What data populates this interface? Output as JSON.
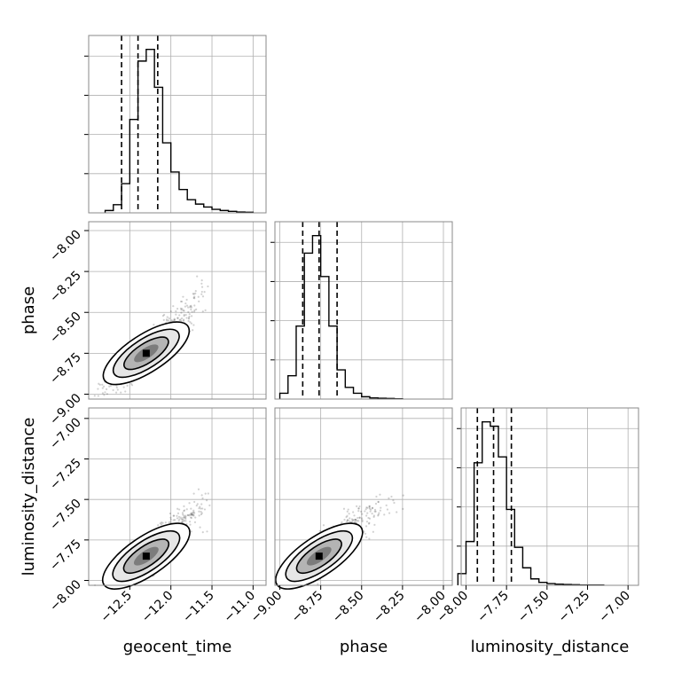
{
  "chart_data": {
    "type": "corner",
    "variables": [
      "geocent_time",
      "phase",
      "luminosity_distance"
    ],
    "ranges": {
      "geocent_time": [
        -13.0,
        -10.95
      ],
      "phase": [
        -9.03,
        -8.0
      ],
      "luminosity_distance": [
        -8.03,
        -6.99
      ]
    },
    "ticks": {
      "geocent_time": {
        "values": [
          -12.5,
          -12.0,
          -11.5,
          -11.0
        ],
        "labels": [
          "−12.5",
          "−12.0",
          "−11.5",
          "−11.0"
        ]
      },
      "phase": {
        "values": [
          -9.0,
          -8.75,
          -8.5,
          -8.25,
          -8.0
        ],
        "labels": [
          "−9.00",
          "−8.75",
          "−8.50",
          "−8.25",
          "−8.00"
        ]
      },
      "luminosity_distance": {
        "values": [
          -8.0,
          -7.75,
          -7.5,
          -7.25,
          -7.0
        ],
        "labels": [
          "−8.00",
          "−7.75",
          "−7.50",
          "−7.25",
          "−7.00"
        ]
      }
    },
    "histograms": {
      "geocent_time": {
        "edges": [
          -12.8,
          -12.7,
          -12.6,
          -12.5,
          -12.4,
          -12.3,
          -12.2,
          -12.1,
          -12.0,
          -11.9,
          -11.8,
          -11.7,
          -11.6,
          -11.5,
          -11.4,
          -11.3,
          -11.2,
          -11.1,
          -11.0
        ],
        "counts": [
          8,
          28,
          100,
          320,
          520,
          560,
          430,
          240,
          140,
          80,
          45,
          30,
          20,
          12,
          8,
          5,
          3,
          2
        ],
        "quantiles": [
          -12.6,
          -12.4,
          -12.16
        ]
      },
      "phase": {
        "edges": [
          -9.0,
          -8.95,
          -8.9,
          -8.85,
          -8.8,
          -8.75,
          -8.7,
          -8.65,
          -8.6,
          -8.55,
          -8.5,
          -8.45,
          -8.4,
          -8.35,
          -8.3,
          -8.25
        ],
        "counts": [
          20,
          80,
          250,
          500,
          560,
          420,
          250,
          100,
          40,
          20,
          8,
          4,
          3,
          2,
          1
        ],
        "quantiles": [
          -8.86,
          -8.76,
          -8.65
        ]
      },
      "luminosity_distance": {
        "edges": [
          -8.05,
          -8.0,
          -7.95,
          -7.9,
          -7.85,
          -7.8,
          -7.75,
          -7.7,
          -7.65,
          -7.6,
          -7.55,
          -7.5,
          -7.45,
          -7.4,
          -7.35,
          -7.3,
          -7.25,
          -7.2,
          -7.15
        ],
        "counts": [
          40,
          150,
          420,
          560,
          545,
          440,
          260,
          130,
          60,
          22,
          10,
          6,
          4,
          3,
          2,
          1,
          1,
          1
        ],
        "quantiles": [
          -7.93,
          -7.83,
          -7.72
        ]
      }
    },
    "pairs": [
      {
        "x": "geocent_time",
        "y": "phase",
        "center": [
          -12.3,
          -8.75
        ],
        "spread": [
          0.16,
          0.07
        ],
        "tail": [
          0.7,
          0.38
        ]
      },
      {
        "x": "geocent_time",
        "y": "luminosity_distance",
        "center": [
          -12.3,
          -7.85
        ],
        "spread": [
          0.16,
          0.075
        ],
        "tail": [
          0.7,
          0.35
        ]
      },
      {
        "x": "phase",
        "y": "luminosity_distance",
        "center": [
          -8.76,
          -7.85
        ],
        "spread": [
          0.08,
          0.075
        ],
        "tail": [
          0.4,
          0.35
        ]
      }
    ],
    "quantile_line_style": "dashed",
    "grid": true
  }
}
